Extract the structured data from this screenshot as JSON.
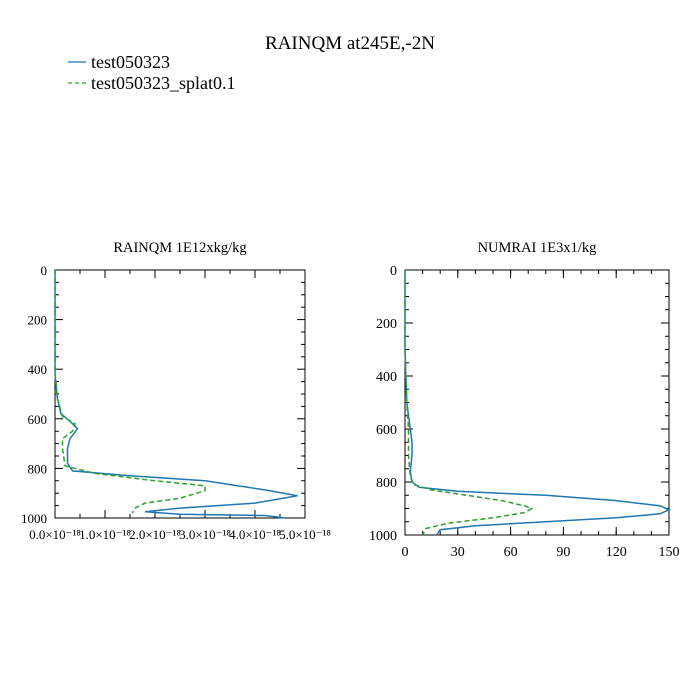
{
  "figure": {
    "title": "RAINQM at245E,-2N",
    "legend": [
      {
        "label": "test050323",
        "color": "#1f77b4",
        "style": "solid"
      },
      {
        "label": "test050323_splat0.1",
        "color": "#2ca02c",
        "style": "dashed"
      }
    ]
  },
  "chart_data": [
    {
      "type": "line",
      "title": "RAINQM  1E12xkg/kg",
      "xlabel": "",
      "ylabel": "",
      "xlim": [
        0,
        5e-18
      ],
      "ylim": [
        1000,
        0
      ],
      "y_inverted": true,
      "x_tick_labels": [
        "0.0×10⁻¹⁸",
        "1.0×10⁻¹⁸",
        "2.0×10⁻¹⁸",
        "3.0×10⁻¹⁸",
        "4.0×10⁻¹⁸",
        "5.0×10⁻¹⁸"
      ],
      "x_ticks": [
        0,
        1e-18,
        2e-18,
        3e-18,
        4e-18,
        5e-18
      ],
      "y_ticks": [
        0,
        200,
        400,
        600,
        800,
        1000
      ],
      "y_tick_labels": [
        "0",
        "200",
        "400",
        "600",
        "800",
        "1000"
      ],
      "series": [
        {
          "name": "test050323",
          "color": "#1f77b4",
          "dash": false,
          "points": [
            [
              0,
              0
            ],
            [
              0,
              420
            ],
            [
              5e-20,
              520
            ],
            [
              1.2e-19,
              580
            ],
            [
              3e-19,
              610
            ],
            [
              4.5e-19,
              640
            ],
            [
              3e-19,
              680
            ],
            [
              2.5e-19,
              720
            ],
            [
              2.5e-19,
              780
            ],
            [
              3.5e-19,
              810
            ],
            [
              1.5e-18,
              830
            ],
            [
              3e-18,
              850
            ],
            [
              4.3e-18,
              890
            ],
            [
              4.85e-18,
              910
            ],
            [
              4e-18,
              940
            ],
            [
              2.5e-18,
              960
            ],
            [
              1.8e-18,
              975
            ],
            [
              2.5e-18,
              985
            ],
            [
              4.2e-18,
              990
            ],
            [
              4.6e-18,
              1000
            ]
          ]
        },
        {
          "name": "test050323_splat0.1",
          "color": "#2ca02c",
          "dash": true,
          "points": [
            [
              0,
              0
            ],
            [
              0,
              420
            ],
            [
              5e-20,
              520
            ],
            [
              1.5e-19,
              590
            ],
            [
              4e-19,
              620
            ],
            [
              3.5e-19,
              650
            ],
            [
              1.5e-19,
              680
            ],
            [
              1.5e-19,
              720
            ],
            [
              2e-19,
              790
            ],
            [
              8e-19,
              820
            ],
            [
              2e-18,
              850
            ],
            [
              3e-18,
              870
            ],
            [
              3e-18,
              890
            ],
            [
              2.5e-18,
              920
            ],
            [
              1.8e-18,
              940
            ],
            [
              1.6e-18,
              960
            ],
            [
              1.55e-18,
              980
            ]
          ]
        }
      ]
    },
    {
      "type": "line",
      "title": "NUMRAI  1E3x1/kg",
      "xlabel": "",
      "ylabel": "",
      "xlim": [
        0,
        150
      ],
      "ylim": [
        1000,
        0
      ],
      "y_inverted": true,
      "x_ticks": [
        0,
        30,
        60,
        90,
        120,
        150
      ],
      "x_tick_labels": [
        "0",
        "30",
        "60",
        "90",
        "120",
        "150"
      ],
      "y_ticks": [
        0,
        200,
        400,
        600,
        800,
        1000
      ],
      "y_tick_labels": [
        "0",
        "200",
        "400",
        "600",
        "800",
        "1000"
      ],
      "series": [
        {
          "name": "test050323",
          "color": "#1f77b4",
          "dash": false,
          "points": [
            [
              0,
              0
            ],
            [
              0,
              300
            ],
            [
              1,
              500
            ],
            [
              3,
              600
            ],
            [
              4,
              650
            ],
            [
              4,
              700
            ],
            [
              3,
              760
            ],
            [
              4,
              800
            ],
            [
              8,
              820
            ],
            [
              30,
              835
            ],
            [
              80,
              850
            ],
            [
              120,
              870
            ],
            [
              145,
              890
            ],
            [
              150,
              905
            ],
            [
              145,
              920
            ],
            [
              120,
              935
            ],
            [
              80,
              950
            ],
            [
              40,
              965
            ],
            [
              20,
              980
            ],
            [
              18,
              1000
            ]
          ]
        },
        {
          "name": "test050323_splat0.1",
          "color": "#2ca02c",
          "dash": true,
          "points": [
            [
              0,
              0
            ],
            [
              0,
              300
            ],
            [
              1,
              500
            ],
            [
              2,
              600
            ],
            [
              2,
              700
            ],
            [
              3,
              780
            ],
            [
              5,
              810
            ],
            [
              15,
              830
            ],
            [
              35,
              850
            ],
            [
              55,
              870
            ],
            [
              68,
              890
            ],
            [
              72,
              900
            ],
            [
              68,
              915
            ],
            [
              50,
              935
            ],
            [
              25,
              955
            ],
            [
              12,
              975
            ],
            [
              10,
              1000
            ]
          ]
        }
      ]
    }
  ]
}
